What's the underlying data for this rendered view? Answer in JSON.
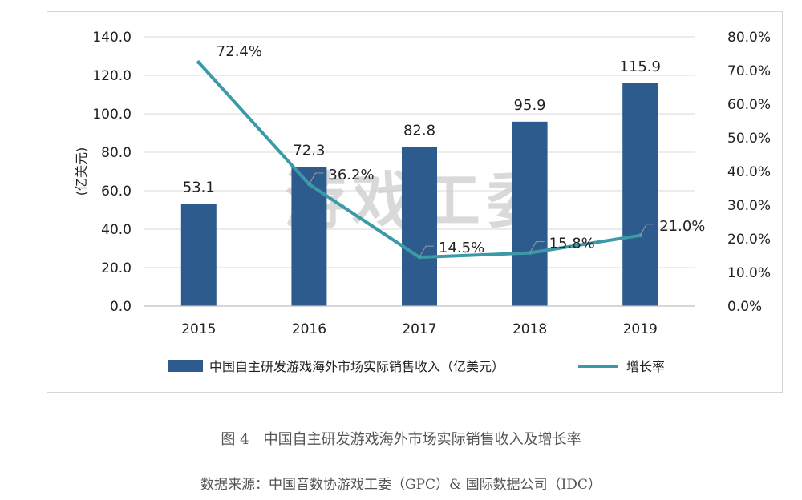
{
  "chart_data": {
    "type": "bar",
    "categories": [
      "2015",
      "2016",
      "2017",
      "2018",
      "2019"
    ],
    "series": [
      {
        "name": "中国自主研发游戏海外市场实际销售收入（亿美元）",
        "type": "bar",
        "axis": "left",
        "values": [
          53.1,
          72.3,
          82.8,
          95.9,
          115.9
        ],
        "labels": [
          "53.1",
          "72.3",
          "82.8",
          "95.9",
          "115.9"
        ]
      },
      {
        "name": "增长率",
        "type": "line",
        "axis": "right",
        "values": [
          72.4,
          36.2,
          14.5,
          15.8,
          21.0
        ],
        "labels": [
          "72.4%",
          "36.2%",
          "14.5%",
          "15.8%",
          "21.0%"
        ]
      }
    ],
    "ylabel": "(亿美元)",
    "ylim": [
      0,
      140
    ],
    "y_ticks": [
      "0.0",
      "20.0",
      "40.0",
      "60.0",
      "80.0",
      "100.0",
      "120.0",
      "140.0"
    ],
    "y2lim": [
      0,
      80
    ],
    "y2_ticks": [
      "0.0%",
      "10.0%",
      "20.0%",
      "30.0%",
      "40.0%",
      "50.0%",
      "60.0%",
      "70.0%",
      "80.0%"
    ],
    "grid": true,
    "legend": "bottom",
    "watermark": "游戏工委",
    "colors": {
      "bar": "#2e5b8e",
      "line": "#3b9aa5",
      "grid": "#d9d9d9",
      "text": "#222222",
      "watermark": "#c9c9c9"
    }
  },
  "caption": "图 4　中国自主研发游戏海外市场实际销售收入及增长率",
  "source": "数据来源：中国音数协游戏工委（GPC）& 国际数据公司（IDC）"
}
